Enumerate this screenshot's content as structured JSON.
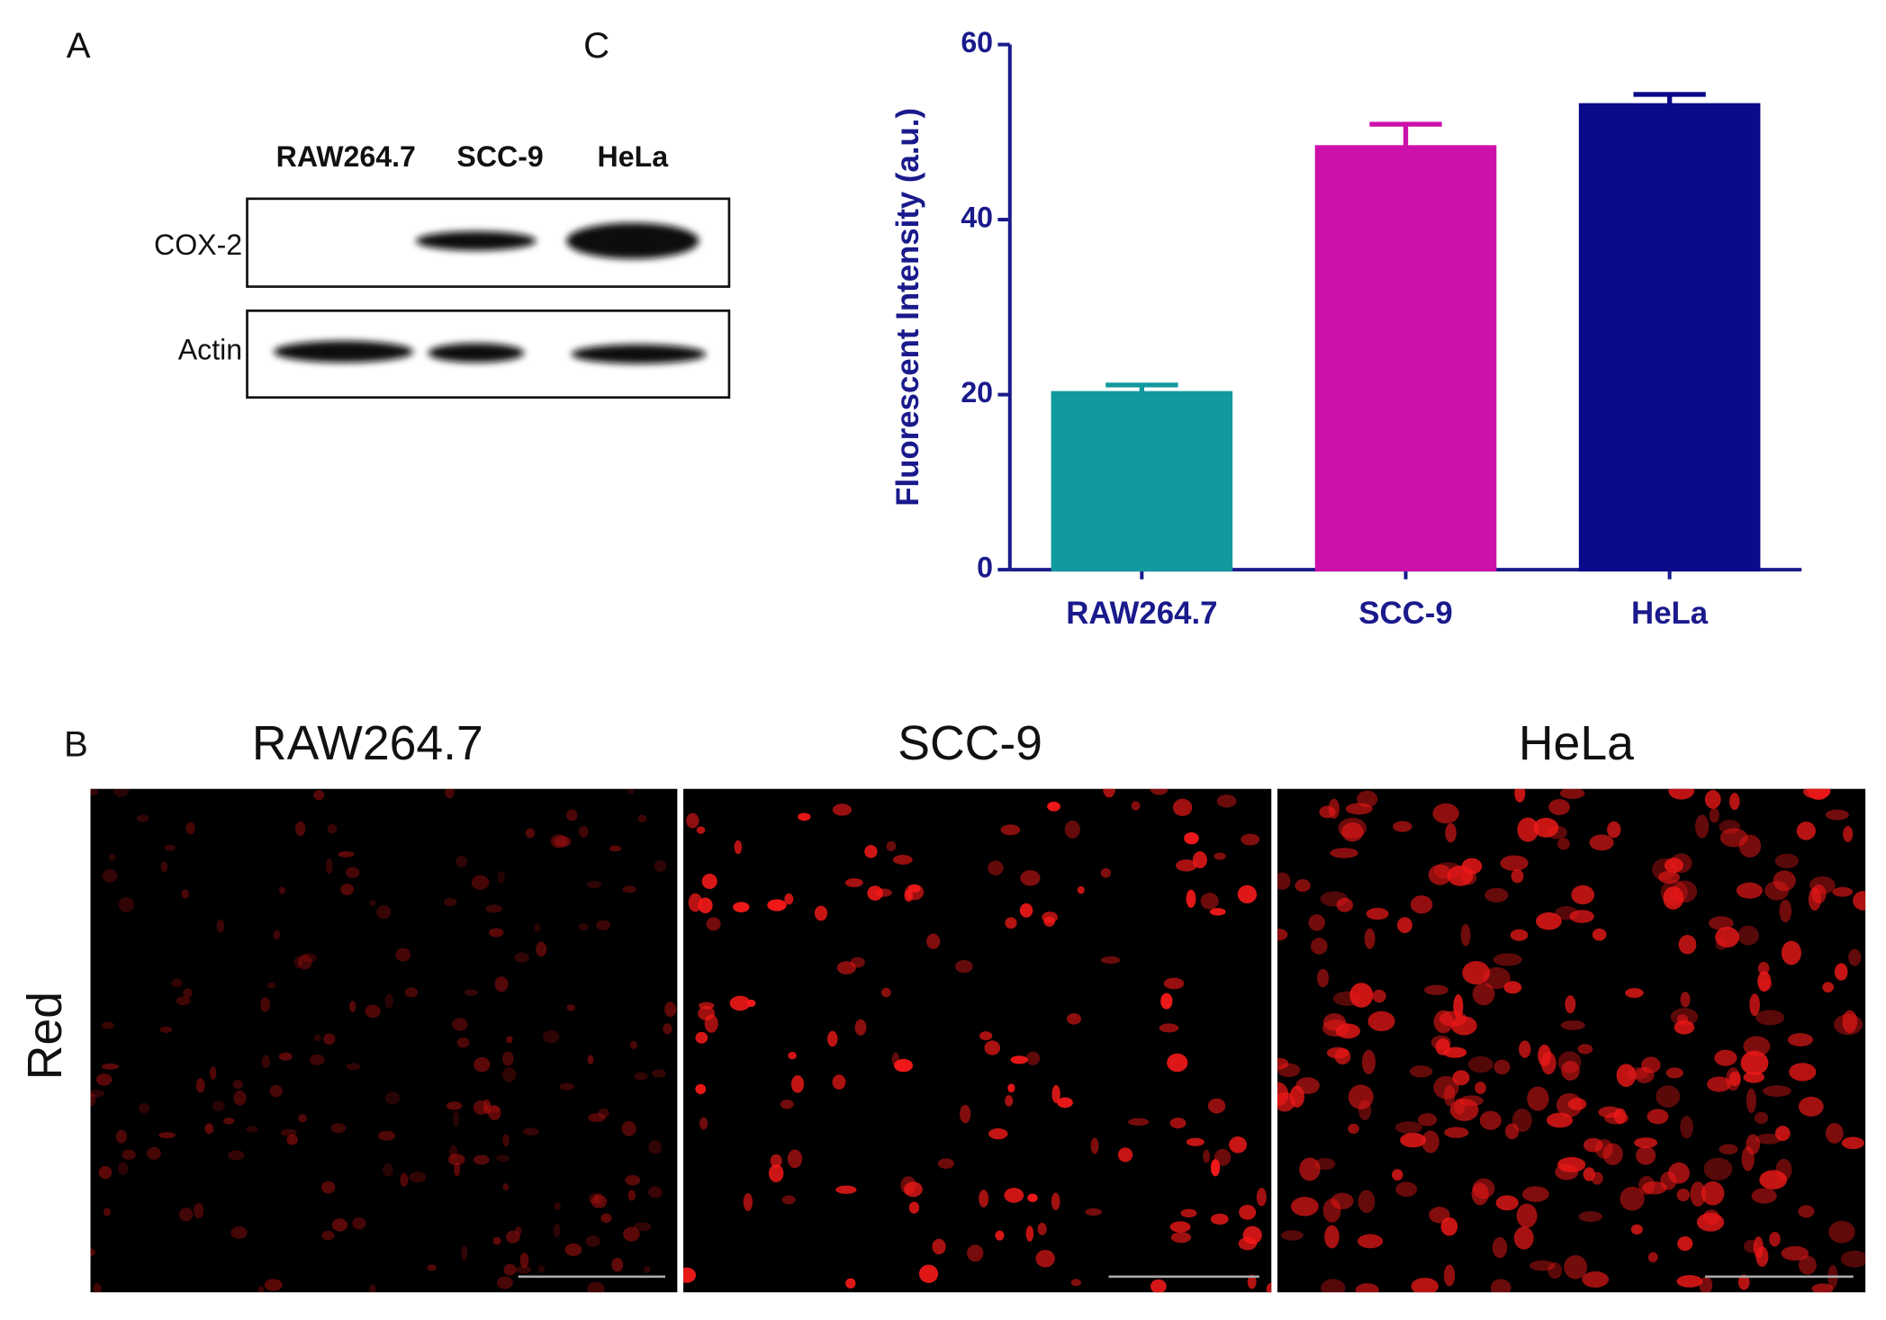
{
  "panel_labels": [
    "A",
    "B",
    "C"
  ],
  "blot": {
    "lanes": [
      "RAW264.7",
      "SCC-9",
      "HeLa"
    ],
    "rows": [
      "COX-2",
      "Actin"
    ]
  },
  "images": {
    "titles": [
      "RAW264.7",
      "SCC-9",
      "HeLa"
    ],
    "channel": "Red"
  },
  "chart_data": {
    "type": "bar",
    "categories": [
      "RAW264.7",
      "SCC-9",
      "HeLa"
    ],
    "values": [
      20.2,
      48.3,
      53.1
    ],
    "errors": [
      0.9,
      2.6,
      1.2
    ],
    "colors": [
      "#11999e",
      "#cc11aa",
      "#0a0a8a"
    ],
    "ylabel": "Fluorescent Intensity (a.u.)",
    "ylim": [
      0,
      60
    ],
    "yticks": [
      0,
      20,
      40,
      60
    ]
  }
}
